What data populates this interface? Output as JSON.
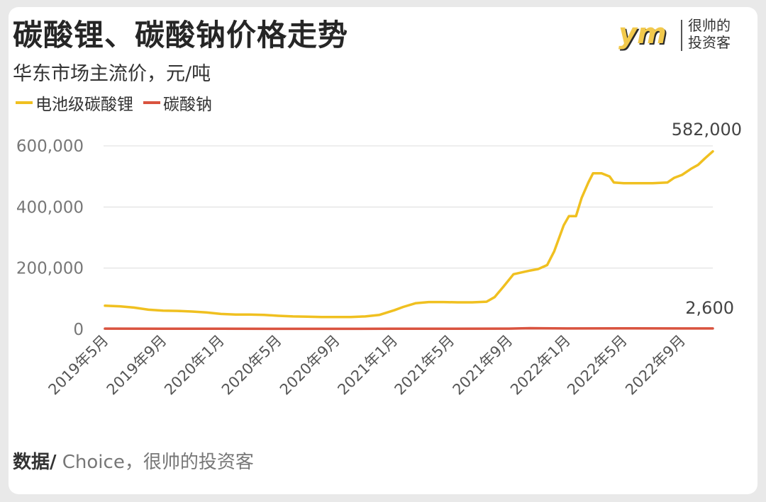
{
  "header": {
    "title": "碳酸锂、碳酸钠价格走势",
    "subtitle": "华东市场主流价，元/吨"
  },
  "brand": {
    "mark_text": "ym",
    "line1": "很帅的",
    "line2": "投资客"
  },
  "legend": [
    {
      "label": "电池级碳酸锂",
      "color": "#f0c020"
    },
    {
      "label": "碳酸钠",
      "color": "#d9533f"
    }
  ],
  "source": {
    "prefix": "数据/",
    "text": " Choice，很帅的投资客"
  },
  "chart_data": {
    "type": "line",
    "title": "碳酸锂、碳酸钠价格走势",
    "subtitle": "华东市场主流价，元/吨",
    "x_ticks": [
      "2019年5月",
      "2019年9月",
      "2020年1月",
      "2020年5月",
      "2020年9月",
      "2021年1月",
      "2021年5月",
      "2021年9月",
      "2022年1月",
      "2022年5月",
      "2022年9月"
    ],
    "y_ticks": [
      "0",
      "200,000",
      "400,000",
      "600,000"
    ],
    "ylim": [
      0,
      600000
    ],
    "x_range": [
      "2019-05",
      "2022-11"
    ],
    "grid": true,
    "legend_position": "top-left",
    "series": [
      {
        "name": "电池级碳酸锂",
        "color": "#f0c020",
        "end_label": "582,000",
        "points": [
          [
            "2019-05-01",
            77000
          ],
          [
            "2019-06-01",
            75000
          ],
          [
            "2019-07-01",
            71000
          ],
          [
            "2019-08-01",
            64000
          ],
          [
            "2019-09-01",
            61000
          ],
          [
            "2019-10-01",
            60000
          ],
          [
            "2019-11-01",
            58000
          ],
          [
            "2019-12-01",
            55000
          ],
          [
            "2020-01-01",
            50000
          ],
          [
            "2020-02-01",
            48000
          ],
          [
            "2020-03-01",
            48000
          ],
          [
            "2020-04-01",
            47000
          ],
          [
            "2020-05-01",
            44000
          ],
          [
            "2020-06-01",
            42000
          ],
          [
            "2020-07-01",
            41000
          ],
          [
            "2020-08-01",
            40000
          ],
          [
            "2020-09-01",
            40000
          ],
          [
            "2020-10-01",
            40000
          ],
          [
            "2020-11-01",
            42000
          ],
          [
            "2020-12-01",
            47000
          ],
          [
            "2021-01-01",
            62000
          ],
          [
            "2021-01-20",
            73000
          ],
          [
            "2021-02-15",
            85000
          ],
          [
            "2021-03-15",
            89000
          ],
          [
            "2021-04-15",
            89000
          ],
          [
            "2021-05-15",
            88000
          ],
          [
            "2021-06-15",
            88000
          ],
          [
            "2021-07-15",
            90000
          ],
          [
            "2021-08-01",
            105000
          ],
          [
            "2021-08-20",
            140000
          ],
          [
            "2021-09-10",
            180000
          ],
          [
            "2021-09-25",
            185000
          ],
          [
            "2021-10-15",
            192000
          ],
          [
            "2021-11-01",
            197000
          ],
          [
            "2021-11-20",
            210000
          ],
          [
            "2021-12-05",
            255000
          ],
          [
            "2021-12-25",
            340000
          ],
          [
            "2022-01-05",
            370000
          ],
          [
            "2022-01-20",
            370000
          ],
          [
            "2022-02-01",
            430000
          ],
          [
            "2022-02-15",
            480000
          ],
          [
            "2022-02-25",
            510000
          ],
          [
            "2022-03-15",
            510000
          ],
          [
            "2022-04-01",
            500000
          ],
          [
            "2022-04-10",
            480000
          ],
          [
            "2022-05-01",
            478000
          ],
          [
            "2022-06-01",
            478000
          ],
          [
            "2022-07-01",
            478000
          ],
          [
            "2022-08-01",
            480000
          ],
          [
            "2022-08-15",
            495000
          ],
          [
            "2022-09-01",
            505000
          ],
          [
            "2022-09-20",
            525000
          ],
          [
            "2022-10-05",
            538000
          ],
          [
            "2022-10-20",
            560000
          ],
          [
            "2022-11-05",
            582000
          ]
        ]
      },
      {
        "name": "碳酸钠",
        "color": "#d9533f",
        "end_label": "2,600",
        "points": [
          [
            "2019-05-01",
            2000
          ],
          [
            "2019-09-01",
            1900
          ],
          [
            "2020-01-01",
            1800
          ],
          [
            "2020-05-01",
            1500
          ],
          [
            "2020-09-01",
            1400
          ],
          [
            "2021-01-01",
            1700
          ],
          [
            "2021-05-01",
            1800
          ],
          [
            "2021-09-01",
            2200
          ],
          [
            "2021-10-15",
            3400
          ],
          [
            "2022-01-01",
            2600
          ],
          [
            "2022-05-01",
            3000
          ],
          [
            "2022-09-01",
            2600
          ],
          [
            "2022-11-05",
            2600
          ]
        ]
      }
    ]
  }
}
